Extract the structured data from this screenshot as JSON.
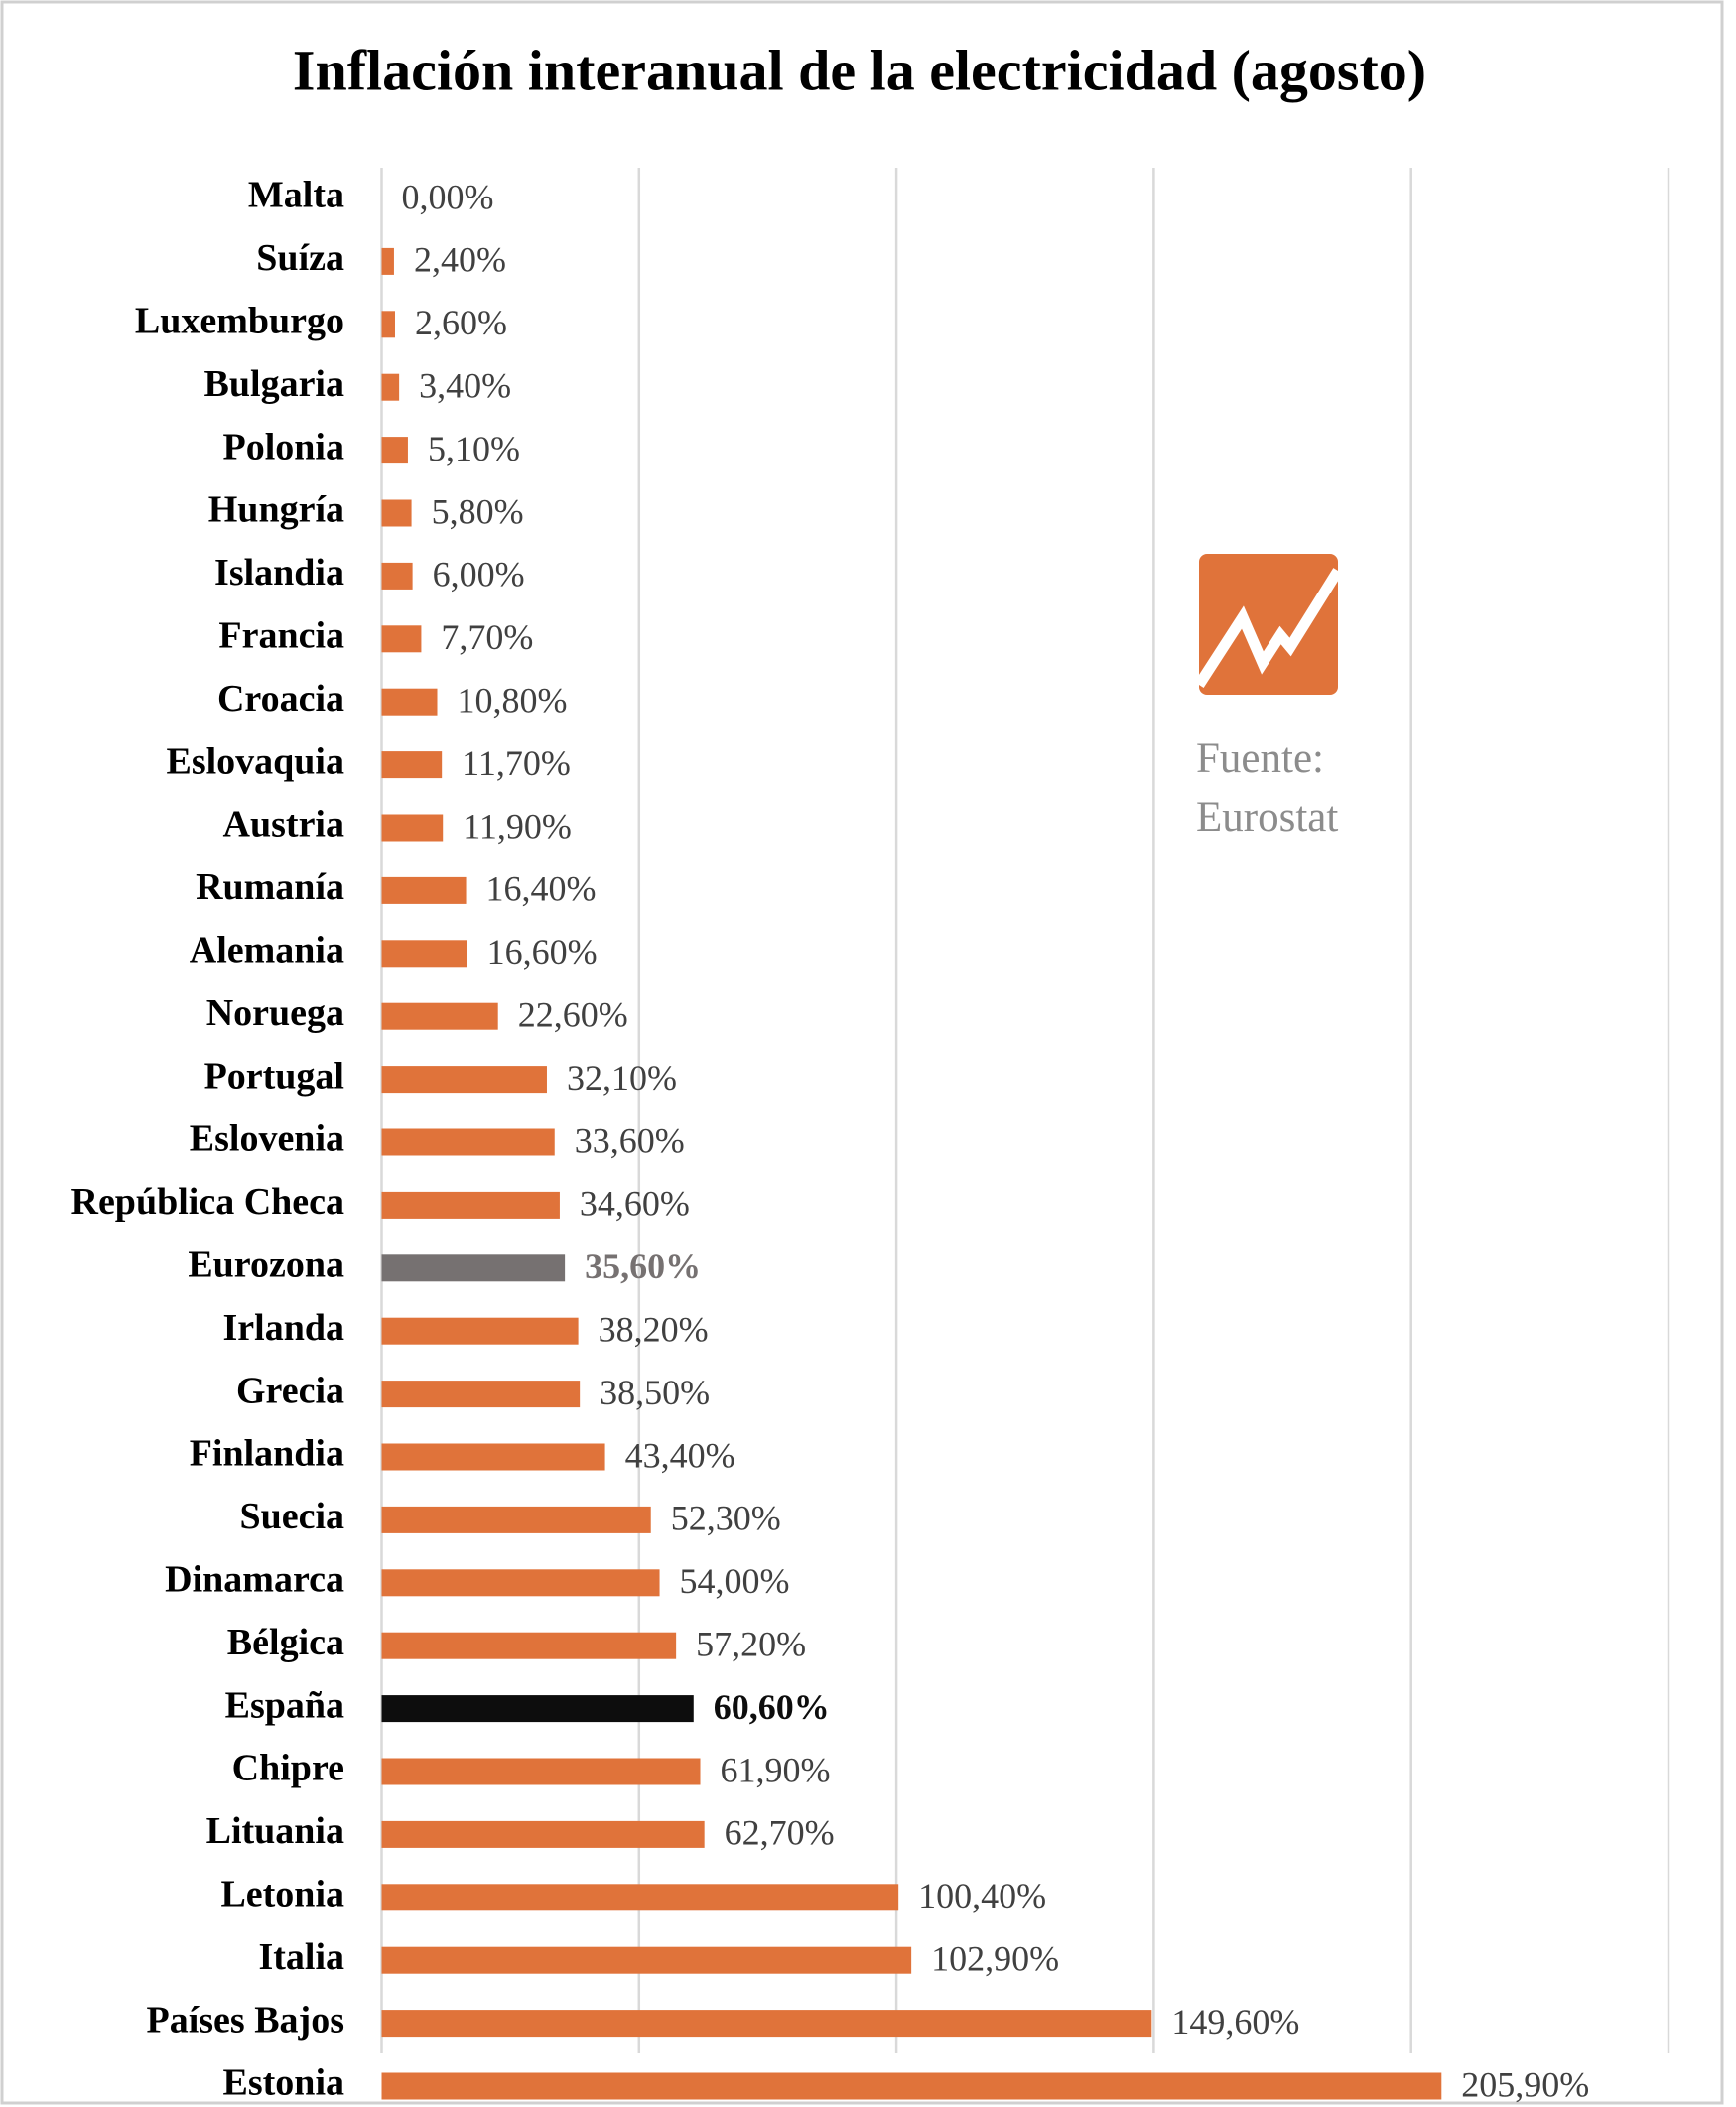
{
  "chart_data": {
    "type": "barh",
    "title": "Inflación interanual de la electricidad (agosto)",
    "categories": [
      "Malta",
      "Suíza",
      "Luxemburgo",
      "Bulgaria",
      "Polonia",
      "Hungría",
      "Islandia",
      "Francia",
      "Croacia",
      "Eslovaquia",
      "Austria",
      "Rumanía",
      "Alemania",
      "Noruega",
      "Portugal",
      "Eslovenia",
      "República Checa",
      "Eurozona",
      "Irlanda",
      "Grecia",
      "Finlandia",
      "Suecia",
      "Dinamarca",
      "Bélgica",
      "España",
      "Chipre",
      "Lituania",
      "Letonia",
      "Italia",
      "Países Bajos",
      "Estonia"
    ],
    "values": [
      0.0,
      2.4,
      2.6,
      3.4,
      5.1,
      5.8,
      6.0,
      7.7,
      10.8,
      11.7,
      11.9,
      16.4,
      16.6,
      22.6,
      32.1,
      33.6,
      34.6,
      35.6,
      38.2,
      38.5,
      43.4,
      52.3,
      54.0,
      57.2,
      60.6,
      61.9,
      62.7,
      100.4,
      102.9,
      149.6,
      205.9
    ],
    "value_labels": [
      "0,00%",
      "2,40%",
      "2,60%",
      "3,40%",
      "5,10%",
      "5,80%",
      "6,00%",
      "7,70%",
      "10,80%",
      "11,70%",
      "11,90%",
      "16,40%",
      "16,60%",
      "22,60%",
      "32,10%",
      "33,60%",
      "34,60%",
      "35,60%",
      "38,20%",
      "38,50%",
      "43,40%",
      "52,30%",
      "54,00%",
      "57,20%",
      "60,60%",
      "61,90%",
      "62,70%",
      "100,40%",
      "102,90%",
      "149,60%",
      "205,90%"
    ],
    "colors": [
      "#e0733a",
      "#e0733a",
      "#e0733a",
      "#e0733a",
      "#e0733a",
      "#e0733a",
      "#e0733a",
      "#e0733a",
      "#e0733a",
      "#e0733a",
      "#e0733a",
      "#e0733a",
      "#e0733a",
      "#e0733a",
      "#e0733a",
      "#e0733a",
      "#e0733a",
      "#767171",
      "#e0733a",
      "#e0733a",
      "#e0733a",
      "#e0733a",
      "#e0733a",
      "#e0733a",
      "#0d0d0d",
      "#e0733a",
      "#e0733a",
      "#e0733a",
      "#e0733a",
      "#e0733a",
      "#e0733a"
    ],
    "color": "#e0733a",
    "xlim": [
      0,
      250
    ],
    "xticks": [
      0,
      50,
      100,
      150,
      200,
      250
    ],
    "grid": true,
    "annotation": [
      "Fuente:",
      "Eurostat"
    ]
  }
}
